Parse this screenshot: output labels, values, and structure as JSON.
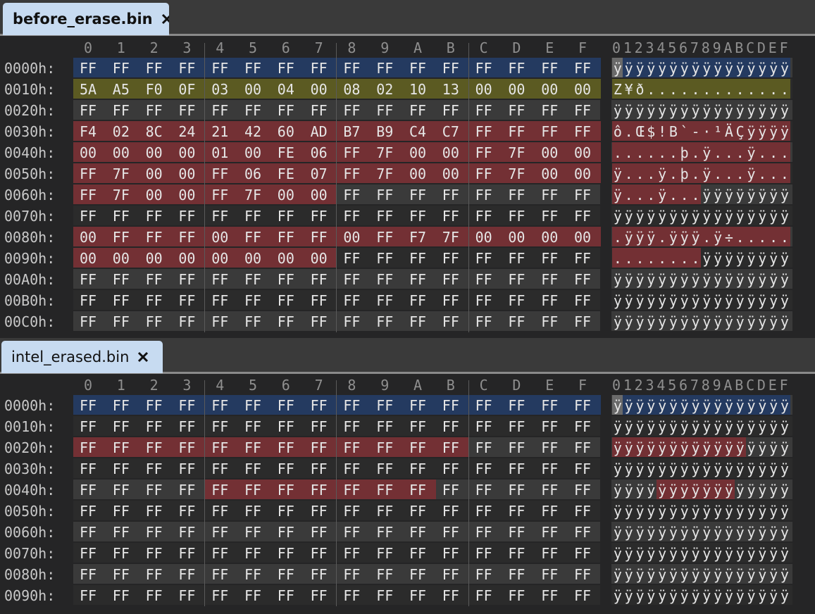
{
  "panes": [
    {
      "tab": "before_erase.bin",
      "bold": true,
      "column_headers": [
        "0",
        "1",
        "2",
        "3",
        "4",
        "5",
        "6",
        "7",
        "8",
        "9",
        "A",
        "B",
        "C",
        "D",
        "E",
        "F"
      ],
      "ascii_header": "0123456789ABCDEF",
      "rows": [
        {
          "offset": "0000h:",
          "bytes": [
            "FF",
            "FF",
            "FF",
            "FF",
            "FF",
            "FF",
            "FF",
            "FF",
            "FF",
            "FF",
            "FF",
            "FF",
            "FF",
            "FF",
            "FF",
            "FF"
          ],
          "ascii": "ÿÿÿÿÿÿÿÿÿÿÿÿÿÿÿÿ",
          "highlight": {
            "from": 0,
            "to": 16,
            "color": "#243a60"
          }
        },
        {
          "offset": "0010h:",
          "bytes": [
            "5A",
            "A5",
            "F0",
            "0F",
            "03",
            "00",
            "04",
            "00",
            "08",
            "02",
            "10",
            "13",
            "00",
            "00",
            "00",
            "00"
          ],
          "ascii": "Z¥ð.............",
          "highlight": {
            "from": 0,
            "to": 16,
            "color": "#5b5a22"
          }
        },
        {
          "offset": "0020h:",
          "bytes": [
            "FF",
            "FF",
            "FF",
            "FF",
            "FF",
            "FF",
            "FF",
            "FF",
            "FF",
            "FF",
            "FF",
            "FF",
            "FF",
            "FF",
            "FF",
            "FF"
          ],
          "ascii": "ÿÿÿÿÿÿÿÿÿÿÿÿÿÿÿÿ"
        },
        {
          "offset": "0030h:",
          "bytes": [
            "F4",
            "02",
            "8C",
            "24",
            "21",
            "42",
            "60",
            "AD",
            "B7",
            "B9",
            "C4",
            "C7",
            "FF",
            "FF",
            "FF",
            "FF"
          ],
          "ascii": "ô.Œ$!B`-·¹ÄÇÿÿÿÿ",
          "highlight": {
            "from": 0,
            "to": 16,
            "color": "#733034"
          }
        },
        {
          "offset": "0040h:",
          "bytes": [
            "00",
            "00",
            "00",
            "00",
            "01",
            "00",
            "FE",
            "06",
            "FF",
            "7F",
            "00",
            "00",
            "FF",
            "7F",
            "00",
            "00"
          ],
          "ascii": "......þ.ÿ...ÿ...",
          "highlight": {
            "from": 0,
            "to": 16,
            "color": "#733034"
          }
        },
        {
          "offset": "0050h:",
          "bytes": [
            "FF",
            "7F",
            "00",
            "00",
            "FF",
            "06",
            "FE",
            "07",
            "FF",
            "7F",
            "00",
            "00",
            "FF",
            "7F",
            "00",
            "00"
          ],
          "ascii": "ÿ...ÿ.þ.ÿ...ÿ...",
          "highlight": {
            "from": 0,
            "to": 16,
            "color": "#733034"
          }
        },
        {
          "offset": "0060h:",
          "bytes": [
            "FF",
            "7F",
            "00",
            "00",
            "FF",
            "7F",
            "00",
            "00",
            "FF",
            "FF",
            "FF",
            "FF",
            "FF",
            "FF",
            "FF",
            "FF"
          ],
          "ascii": "ÿ...ÿ...ÿÿÿÿÿÿÿÿ",
          "highlight": {
            "from": 0,
            "to": 8,
            "color": "#733034"
          }
        },
        {
          "offset": "0070h:",
          "bytes": [
            "FF",
            "FF",
            "FF",
            "FF",
            "FF",
            "FF",
            "FF",
            "FF",
            "FF",
            "FF",
            "FF",
            "FF",
            "FF",
            "FF",
            "FF",
            "FF"
          ],
          "ascii": "ÿÿÿÿÿÿÿÿÿÿÿÿÿÿÿÿ"
        },
        {
          "offset": "0080h:",
          "bytes": [
            "00",
            "FF",
            "FF",
            "FF",
            "00",
            "FF",
            "FF",
            "FF",
            "00",
            "FF",
            "F7",
            "7F",
            "00",
            "00",
            "00",
            "00"
          ],
          "ascii": ".ÿÿÿ.ÿÿÿ.ÿ÷.....",
          "highlight": {
            "from": 0,
            "to": 16,
            "color": "#733034"
          }
        },
        {
          "offset": "0090h:",
          "bytes": [
            "00",
            "00",
            "00",
            "00",
            "00",
            "00",
            "00",
            "00",
            "FF",
            "FF",
            "FF",
            "FF",
            "FF",
            "FF",
            "FF",
            "FF"
          ],
          "ascii": "........ÿÿÿÿÿÿÿÿ",
          "highlight": {
            "from": 0,
            "to": 8,
            "color": "#733034"
          }
        },
        {
          "offset": "00A0h:",
          "bytes": [
            "FF",
            "FF",
            "FF",
            "FF",
            "FF",
            "FF",
            "FF",
            "FF",
            "FF",
            "FF",
            "FF",
            "FF",
            "FF",
            "FF",
            "FF",
            "FF"
          ],
          "ascii": "ÿÿÿÿÿÿÿÿÿÿÿÿÿÿÿÿ"
        },
        {
          "offset": "00B0h:",
          "bytes": [
            "FF",
            "FF",
            "FF",
            "FF",
            "FF",
            "FF",
            "FF",
            "FF",
            "FF",
            "FF",
            "FF",
            "FF",
            "FF",
            "FF",
            "FF",
            "FF"
          ],
          "ascii": "ÿÿÿÿÿÿÿÿÿÿÿÿÿÿÿÿ"
        },
        {
          "offset": "00C0h:",
          "bytes": [
            "FF",
            "FF",
            "FF",
            "FF",
            "FF",
            "FF",
            "FF",
            "FF",
            "FF",
            "FF",
            "FF",
            "FF",
            "FF",
            "FF",
            "FF",
            "FF"
          ],
          "ascii": "ÿÿÿÿÿÿÿÿÿÿÿÿÿÿÿÿ"
        }
      ]
    },
    {
      "tab": "intel_erased.bin",
      "bold": false,
      "column_headers": [
        "0",
        "1",
        "2",
        "3",
        "4",
        "5",
        "6",
        "7",
        "8",
        "9",
        "A",
        "B",
        "C",
        "D",
        "E",
        "F"
      ],
      "ascii_header": "0123456789ABCDEF",
      "rows": [
        {
          "offset": "0000h:",
          "bytes": [
            "FF",
            "FF",
            "FF",
            "FF",
            "FF",
            "FF",
            "FF",
            "FF",
            "FF",
            "FF",
            "FF",
            "FF",
            "FF",
            "FF",
            "FF",
            "FF"
          ],
          "ascii": "ÿÿÿÿÿÿÿÿÿÿÿÿÿÿÿÿ",
          "highlight": {
            "from": 0,
            "to": 16,
            "color": "#243a60"
          }
        },
        {
          "offset": "0010h:",
          "bytes": [
            "FF",
            "FF",
            "FF",
            "FF",
            "FF",
            "FF",
            "FF",
            "FF",
            "FF",
            "FF",
            "FF",
            "FF",
            "FF",
            "FF",
            "FF",
            "FF"
          ],
          "ascii": "ÿÿÿÿÿÿÿÿÿÿÿÿÿÿÿÿ"
        },
        {
          "offset": "0020h:",
          "bytes": [
            "FF",
            "FF",
            "FF",
            "FF",
            "FF",
            "FF",
            "FF",
            "FF",
            "FF",
            "FF",
            "FF",
            "FF",
            "FF",
            "FF",
            "FF",
            "FF"
          ],
          "ascii": "ÿÿÿÿÿÿÿÿÿÿÿÿÿÿÿÿ",
          "highlight": {
            "from": 0,
            "to": 12,
            "color": "#733034"
          }
        },
        {
          "offset": "0030h:",
          "bytes": [
            "FF",
            "FF",
            "FF",
            "FF",
            "FF",
            "FF",
            "FF",
            "FF",
            "FF",
            "FF",
            "FF",
            "FF",
            "FF",
            "FF",
            "FF",
            "FF"
          ],
          "ascii": "ÿÿÿÿÿÿÿÿÿÿÿÿÿÿÿÿ"
        },
        {
          "offset": "0040h:",
          "bytes": [
            "FF",
            "FF",
            "FF",
            "FF",
            "FF",
            "FF",
            "FF",
            "FF",
            "FF",
            "FF",
            "FF",
            "FF",
            "FF",
            "FF",
            "FF",
            "FF"
          ],
          "ascii": "ÿÿÿÿÿÿÿÿÿÿÿÿÿÿÿÿ",
          "highlight": {
            "from": 4,
            "to": 11,
            "color": "#733034"
          }
        },
        {
          "offset": "0050h:",
          "bytes": [
            "FF",
            "FF",
            "FF",
            "FF",
            "FF",
            "FF",
            "FF",
            "FF",
            "FF",
            "FF",
            "FF",
            "FF",
            "FF",
            "FF",
            "FF",
            "FF"
          ],
          "ascii": "ÿÿÿÿÿÿÿÿÿÿÿÿÿÿÿÿ"
        },
        {
          "offset": "0060h:",
          "bytes": [
            "FF",
            "FF",
            "FF",
            "FF",
            "FF",
            "FF",
            "FF",
            "FF",
            "FF",
            "FF",
            "FF",
            "FF",
            "FF",
            "FF",
            "FF",
            "FF"
          ],
          "ascii": "ÿÿÿÿÿÿÿÿÿÿÿÿÿÿÿÿ"
        },
        {
          "offset": "0070h:",
          "bytes": [
            "FF",
            "FF",
            "FF",
            "FF",
            "FF",
            "FF",
            "FF",
            "FF",
            "FF",
            "FF",
            "FF",
            "FF",
            "FF",
            "FF",
            "FF",
            "FF"
          ],
          "ascii": "ÿÿÿÿÿÿÿÿÿÿÿÿÿÿÿÿ"
        },
        {
          "offset": "0080h:",
          "bytes": [
            "FF",
            "FF",
            "FF",
            "FF",
            "FF",
            "FF",
            "FF",
            "FF",
            "FF",
            "FF",
            "FF",
            "FF",
            "FF",
            "FF",
            "FF",
            "FF"
          ],
          "ascii": "ÿÿÿÿÿÿÿÿÿÿÿÿÿÿÿÿ"
        },
        {
          "offset": "0090h:",
          "bytes": [
            "FF",
            "FF",
            "FF",
            "FF",
            "FF",
            "FF",
            "FF",
            "FF",
            "FF",
            "FF",
            "FF",
            "FF",
            "FF",
            "FF",
            "FF",
            "FF"
          ],
          "ascii": "ÿÿÿÿÿÿÿÿÿÿÿÿÿÿÿÿ"
        }
      ]
    }
  ]
}
